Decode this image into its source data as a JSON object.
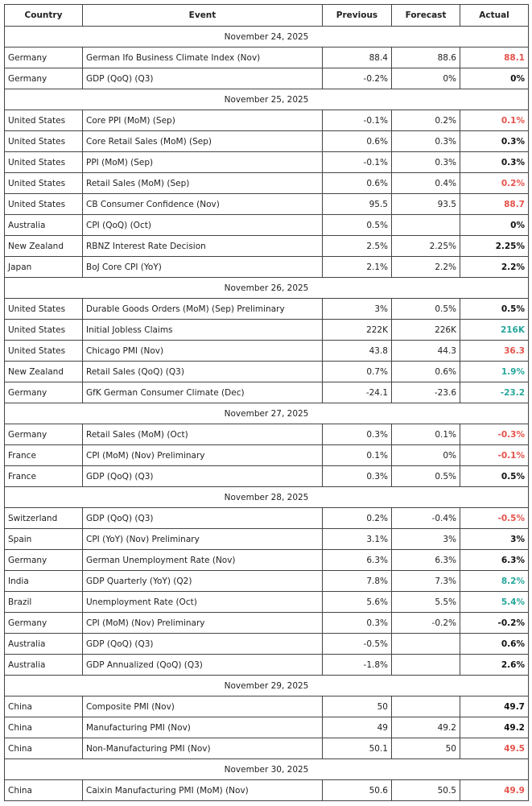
{
  "header": {
    "country": "Country",
    "event": "Event",
    "previous": "Previous",
    "forecast": "Forecast",
    "actual": "Actual"
  },
  "days": [
    {
      "date": "November 24, 2025",
      "rows": [
        {
          "country": "Germany",
          "event": "German Ifo Business Climate Index (Nov)",
          "previous": "88.4",
          "forecast": "88.6",
          "actual": "88.1",
          "actual_color": "#e5534b"
        },
        {
          "country": "Germany",
          "event": "GDP (QoQ) (Q3)",
          "previous": "-0.2%",
          "forecast": "0%",
          "actual": "0%",
          "actual_color": "#111111"
        }
      ]
    },
    {
      "date": "November 25, 2025",
      "rows": [
        {
          "country": "United States",
          "event": "Core PPI (MoM) (Sep)",
          "previous": "-0.1%",
          "forecast": "0.2%",
          "actual": "0.1%",
          "actual_color": "#e5534b"
        },
        {
          "country": "United States",
          "event": "Core Retail Sales (MoM) (Sep)",
          "previous": "0.6%",
          "forecast": "0.3%",
          "actual": "0.3%",
          "actual_color": "#111111"
        },
        {
          "country": "United States",
          "event": "PPI (MoM) (Sep)",
          "previous": "-0.1%",
          "forecast": "0.3%",
          "actual": "0.3%",
          "actual_color": "#111111"
        },
        {
          "country": "United States",
          "event": "Retail Sales (MoM) (Sep)",
          "previous": "0.6%",
          "forecast": "0.4%",
          "actual": "0.2%",
          "actual_color": "#e5534b"
        },
        {
          "country": "United States",
          "event": "CB Consumer Confidence (Nov)",
          "previous": "95.5",
          "forecast": "93.5",
          "actual": "88.7",
          "actual_color": "#e5534b"
        },
        {
          "country": "Australia",
          "event": "CPI (QoQ) (Oct)",
          "previous": "0.5%",
          "forecast": null,
          "actual": "0%",
          "actual_color": "#111111"
        },
        {
          "country": "New Zealand",
          "event": "RBNZ Interest Rate Decision",
          "previous": "2.5%",
          "forecast": "2.25%",
          "actual": "2.25%",
          "actual_color": "#111111"
        },
        {
          "country": "Japan",
          "event": "BoJ Core CPI (YoY)",
          "previous": "2.1%",
          "forecast": "2.2%",
          "actual": "2.2%",
          "actual_color": "#111111"
        }
      ]
    },
    {
      "date": "November 26, 2025",
      "rows": [
        {
          "country": "United States",
          "event": "Durable Goods Orders (MoM) (Sep) Preliminary",
          "previous": "3%",
          "forecast": "0.5%",
          "actual": "0.5%",
          "actual_color": "#111111"
        },
        {
          "country": "United States",
          "event": "Initial Jobless Claims",
          "previous": "222K",
          "forecast": "226K",
          "actual": "216K",
          "actual_color": "#26a69a"
        },
        {
          "country": "United States",
          "event": "Chicago PMI (Nov)",
          "previous": "43.8",
          "forecast": "44.3",
          "actual": "36.3",
          "actual_color": "#e5534b"
        },
        {
          "country": "New Zealand",
          "event": "Retail Sales (QoQ) (Q3)",
          "previous": "0.7%",
          "forecast": "0.6%",
          "actual": "1.9%",
          "actual_color": "#26a69a"
        },
        {
          "country": "Germany",
          "event": "GfK German Consumer Climate (Dec)",
          "previous": "-24.1",
          "forecast": "-23.6",
          "actual": "-23.2",
          "actual_color": "#26a69a"
        }
      ]
    },
    {
      "date": "November 27, 2025",
      "rows": [
        {
          "country": "Germany",
          "event": "Retail Sales (MoM) (Oct)",
          "previous": "0.3%",
          "forecast": "0.1%",
          "actual": "-0.3%",
          "actual_color": "#e5534b"
        },
        {
          "country": "France",
          "event": "CPI (MoM) (Nov) Preliminary",
          "previous": "0.1%",
          "forecast": "0%",
          "actual": "-0.1%",
          "actual_color": "#e5534b"
        },
        {
          "country": "France",
          "event": "GDP (QoQ) (Q3)",
          "previous": "0.3%",
          "forecast": "0.5%",
          "actual": "0.5%",
          "actual_color": "#111111"
        }
      ]
    },
    {
      "date": "November 28, 2025",
      "rows": [
        {
          "country": "Switzerland",
          "event": "GDP (QoQ) (Q3)",
          "previous": "0.2%",
          "forecast": "-0.4%",
          "actual": "-0.5%",
          "actual_color": "#e5534b"
        },
        {
          "country": "Spain",
          "event": "CPI (YoY) (Nov) Preliminary",
          "previous": "3.1%",
          "forecast": "3%",
          "actual": "3%",
          "actual_color": "#111111"
        },
        {
          "country": "Germany",
          "event": "German Unemployment Rate (Nov)",
          "previous": "6.3%",
          "forecast": "6.3%",
          "actual": "6.3%",
          "actual_color": "#111111"
        },
        {
          "country": "India",
          "event": "GDP Quarterly (YoY) (Q2)",
          "previous": "7.8%",
          "forecast": "7.3%",
          "actual": "8.2%",
          "actual_color": "#26a69a"
        },
        {
          "country": "Brazil",
          "event": "Unemployment Rate (Oct)",
          "previous": "5.6%",
          "forecast": "5.5%",
          "actual": "5.4%",
          "actual_color": "#26a69a"
        },
        {
          "country": "Germany",
          "event": "CPI (MoM) (Nov) Preliminary",
          "previous": "0.3%",
          "forecast": "-0.2%",
          "actual": "-0.2%",
          "actual_color": "#111111"
        },
        {
          "country": "Australia",
          "event": "GDP (QoQ) (Q3)",
          "previous": "-0.5%",
          "forecast": null,
          "actual": "0.6%",
          "actual_color": "#111111"
        },
        {
          "country": "Australia",
          "event": "GDP Annualized (QoQ) (Q3)",
          "previous": "-1.8%",
          "forecast": null,
          "actual": "2.6%",
          "actual_color": "#111111"
        }
      ]
    },
    {
      "date": "November 29, 2025",
      "rows": [
        {
          "country": "China",
          "event": "Composite PMI (Nov)",
          "previous": "50",
          "forecast": null,
          "actual": "49.7",
          "actual_color": "#111111"
        },
        {
          "country": "China",
          "event": "Manufacturing PMI (Nov)",
          "previous": "49",
          "forecast": "49.2",
          "actual": "49.2",
          "actual_color": "#111111"
        },
        {
          "country": "China",
          "event": "Non-Manufacturing PMI (Nov)",
          "previous": "50.1",
          "forecast": "50",
          "actual": "49.5",
          "actual_color": "#e5534b"
        }
      ]
    },
    {
      "date": "November 30, 2025",
      "rows": [
        {
          "country": "China",
          "event": "Caixin Manufacturing PMI (MoM) (Nov)",
          "previous": "50.6",
          "forecast": "50.5",
          "actual": "49.9",
          "actual_color": "#e5534b"
        }
      ]
    }
  ]
}
